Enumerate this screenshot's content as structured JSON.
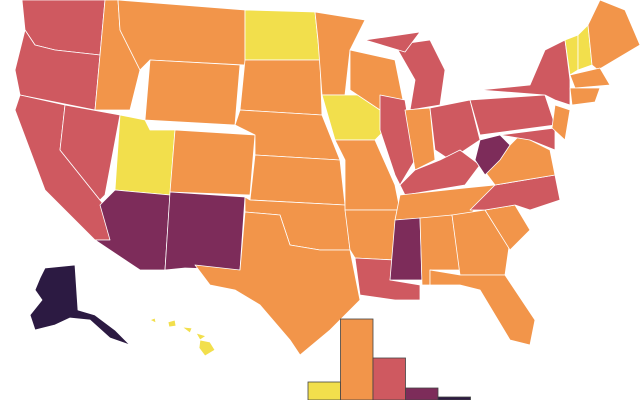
{
  "chart_data": {
    "type": "bar",
    "values": [
      6,
      27,
      14,
      4,
      1
    ],
    "colors": [
      "#f2df4c",
      "#f2954a",
      "#cf5960",
      "#7d2c5a",
      "#2c1a42"
    ],
    "ylim": [
      0,
      27
    ]
  }
}
